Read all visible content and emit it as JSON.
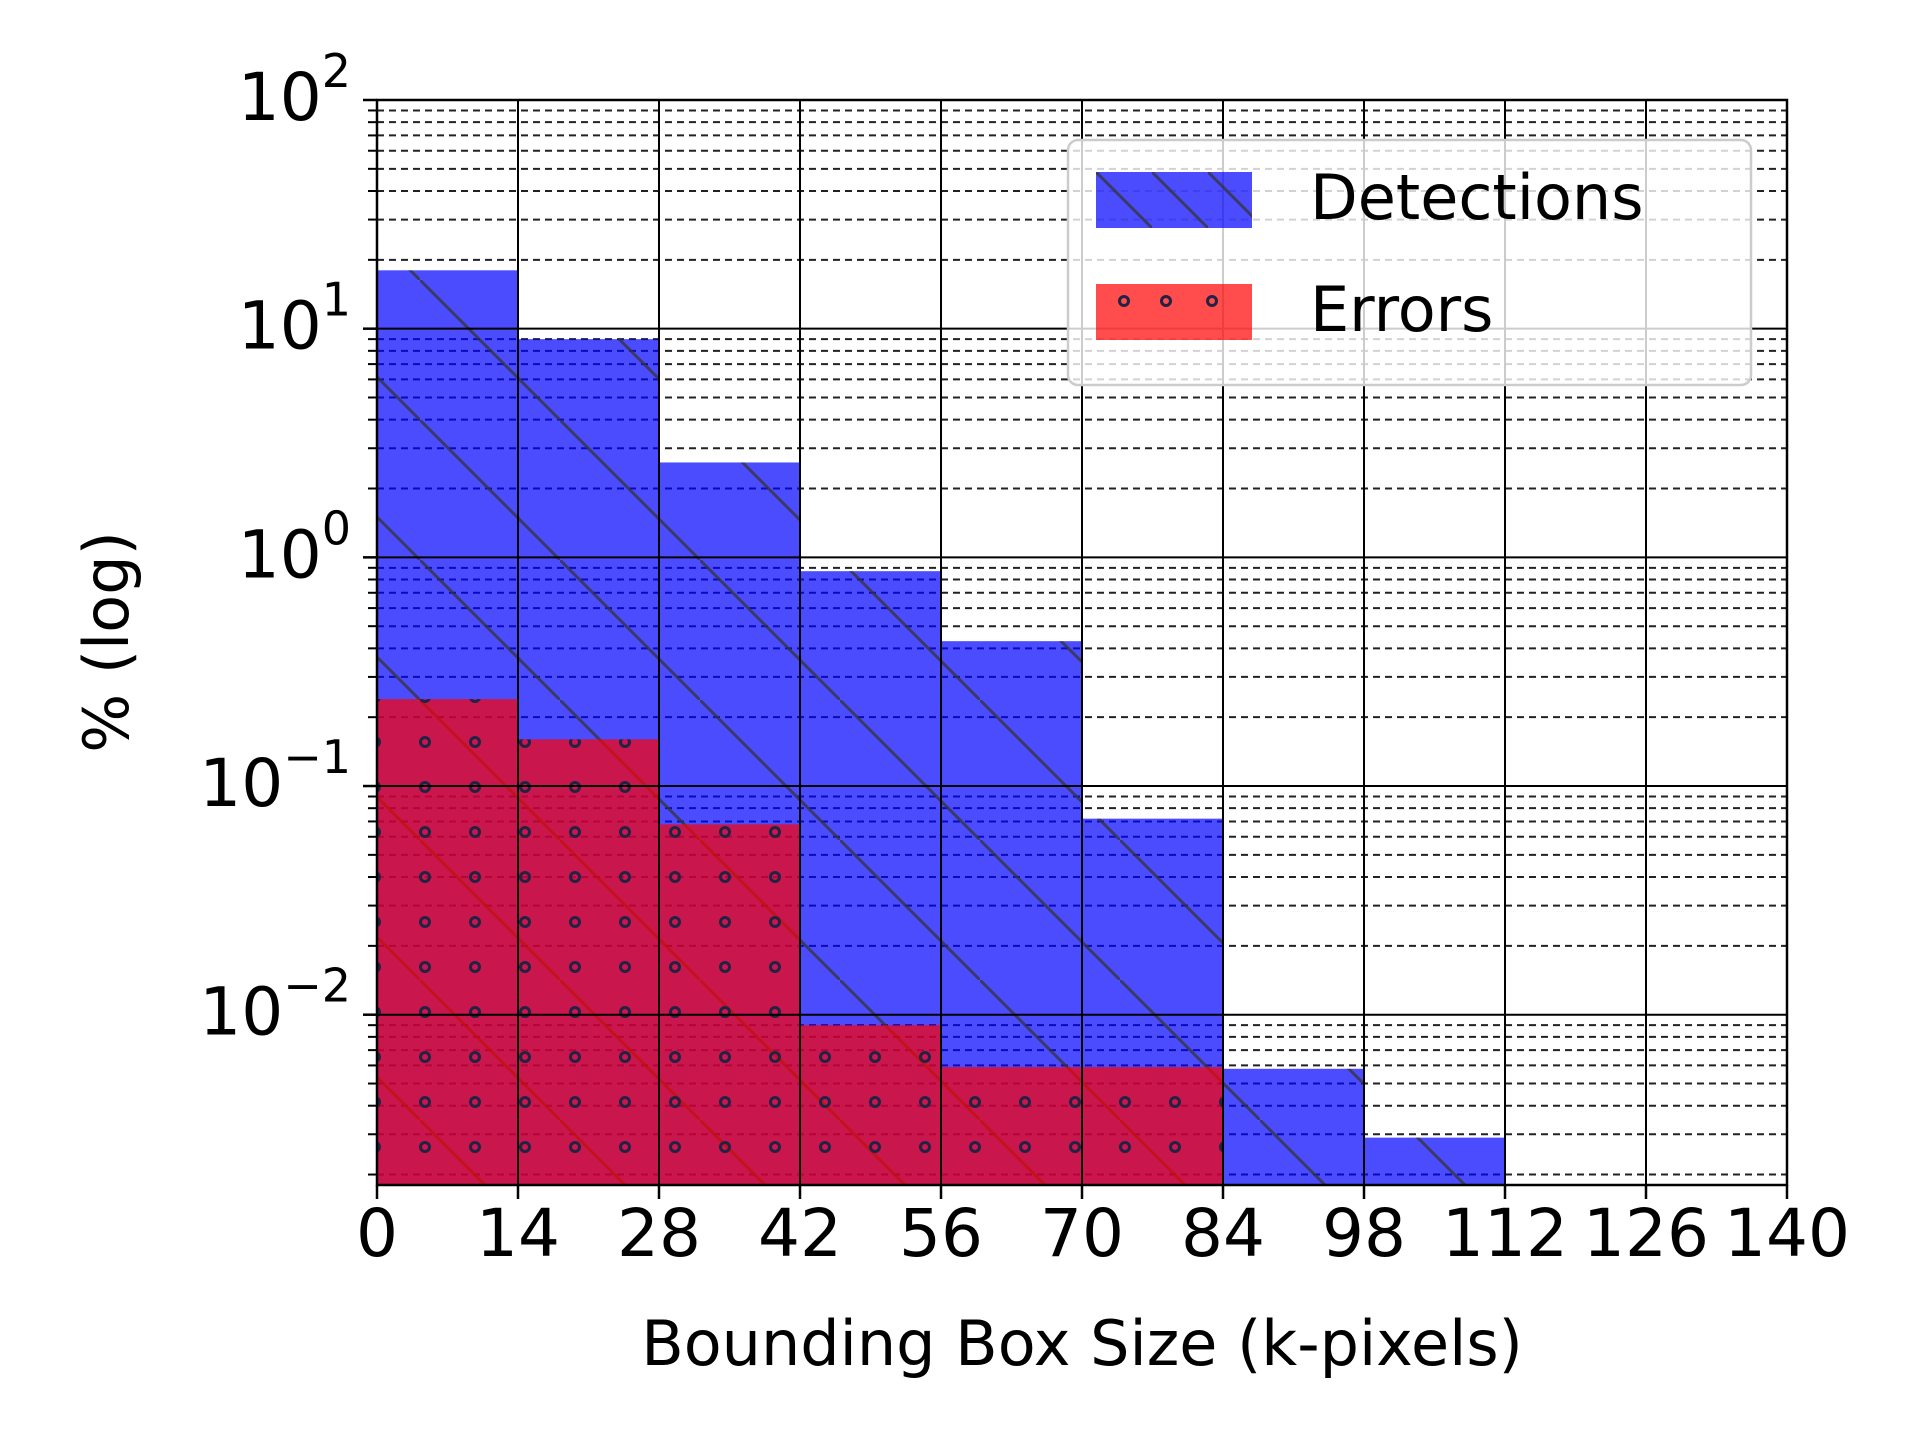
{
  "chart_data": {
    "type": "bar",
    "xlabel": "Bounding Box Size (k-pixels)",
    "ylabel": "% (log)",
    "yscale": "log",
    "ylim": [
      0.0018,
      100
    ],
    "xlim": [
      0,
      140
    ],
    "x_ticks": [
      "0",
      "14",
      "28",
      "42",
      "56",
      "70",
      "84",
      "98",
      "112",
      "126",
      "140"
    ],
    "y_ticks": [
      {
        "value": 100,
        "base": "10",
        "exp": "2"
      },
      {
        "value": 10,
        "base": "10",
        "exp": "1"
      },
      {
        "value": 1,
        "base": "10",
        "exp": "0"
      },
      {
        "value": 0.1,
        "base": "10",
        "exp": "−1"
      },
      {
        "value": 0.01,
        "base": "10",
        "exp": "−2"
      }
    ],
    "bin_edges": [
      0,
      14,
      28,
      42,
      56,
      70,
      84,
      98,
      112,
      126,
      140
    ],
    "series": [
      {
        "name": "Detections",
        "color": "#0000ff",
        "hatch": "diagonal",
        "values": [
          18,
          9,
          2.6,
          0.87,
          0.43,
          0.072,
          0.0058,
          0.0029,
          null,
          null
        ]
      },
      {
        "name": "Errors",
        "color": "#ff0000",
        "hatch": "dots",
        "values": [
          0.24,
          0.16,
          0.068,
          0.009,
          0.0059,
          0.0059,
          null,
          null,
          null,
          null
        ]
      }
    ],
    "grid": {
      "major": true,
      "minor": true,
      "minor_style": "dashed"
    },
    "legend": {
      "position": "top-right",
      "entries": [
        "Detections",
        "Errors"
      ]
    }
  }
}
